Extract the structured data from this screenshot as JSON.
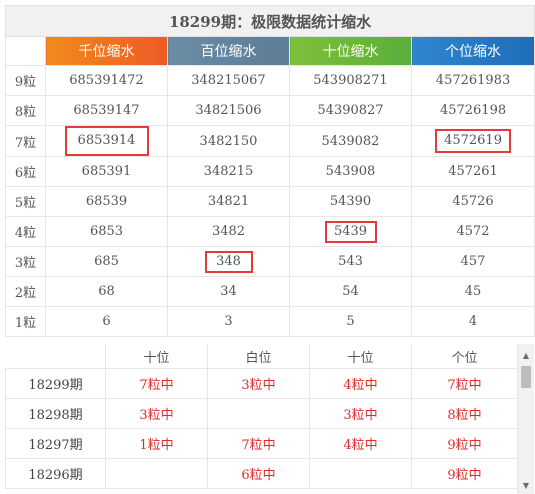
{
  "title": "18299期：极限数据统计缩水",
  "columns": [
    "千位缩水",
    "百位缩水",
    "十位缩水",
    "个位缩水"
  ],
  "colors": {
    "qian": "#ee6a22",
    "bai": "#6485a0",
    "shi": "#6bb63a",
    "ge": "#2479c4",
    "highlight_box": "#e33a3a",
    "hit_text": "#e12a2a"
  },
  "rows": [
    {
      "label": "9粒",
      "values": [
        "685391472",
        "348215067",
        "543908271",
        "457261983"
      ]
    },
    {
      "label": "8粒",
      "values": [
        "68539147",
        "34821506",
        "54390827",
        "45726198"
      ]
    },
    {
      "label": "7粒",
      "values": [
        "6853914",
        "3482150",
        "5439082",
        "4572619"
      ]
    },
    {
      "label": "6粒",
      "values": [
        "685391",
        "348215",
        "543908",
        "457261"
      ]
    },
    {
      "label": "5粒",
      "values": [
        "68539",
        "34821",
        "54390",
        "45726"
      ]
    },
    {
      "label": "4粒",
      "values": [
        "6853",
        "3482",
        "5439",
        "4572"
      ]
    },
    {
      "label": "3粒",
      "values": [
        "685",
        "348",
        "543",
        "457"
      ]
    },
    {
      "label": "2粒",
      "values": [
        "68",
        "34",
        "54",
        "45"
      ]
    },
    {
      "label": "1粒",
      "values": [
        "6",
        "3",
        "5",
        "4"
      ]
    }
  ],
  "highlighted_cells": [
    {
      "row": "7粒",
      "column": "千位缩水",
      "value": "6853914"
    },
    {
      "row": "7粒",
      "column": "个位缩水",
      "value": "4572619"
    },
    {
      "row": "4粒",
      "column": "十位缩水",
      "value": "5439"
    },
    {
      "row": "3粒",
      "column": "百位缩水",
      "value": "348"
    }
  ],
  "history": {
    "headers": [
      "",
      "十位",
      "白位",
      "十位",
      "个位"
    ],
    "rows": [
      {
        "issue": "18299期",
        "cells": [
          "7粒中",
          "3粒中",
          "4粒中",
          "7粒中"
        ]
      },
      {
        "issue": "18298期",
        "cells": [
          "3粒中",
          "",
          "3粒中",
          "8粒中"
        ]
      },
      {
        "issue": "18297期",
        "cells": [
          "1粒中",
          "7粒中",
          "4粒中",
          "9粒中"
        ]
      },
      {
        "issue": "18296期",
        "cells": [
          "",
          "6粒中",
          "",
          "9粒中"
        ]
      }
    ]
  }
}
